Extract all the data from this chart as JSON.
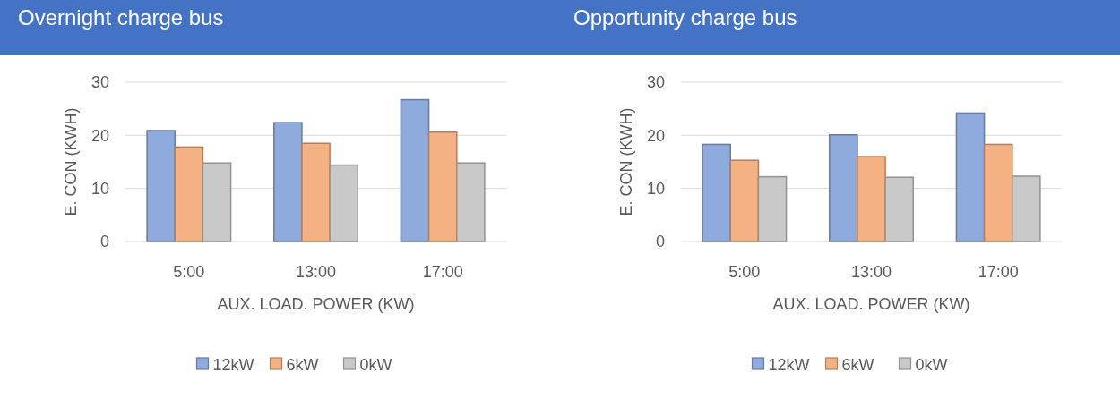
{
  "chart_data": [
    {
      "type": "bar",
      "title": "Overnight charge bus",
      "xlabel": "AUX. LOAD. POWER (KW)",
      "ylabel": "E. CON (KWH)",
      "categories": [
        "5:00",
        "13:00",
        "17:00"
      ],
      "series": [
        {
          "name": "12kW",
          "color": "#8faadc",
          "values": [
            20.9,
            22.4,
            26.7
          ]
        },
        {
          "name": "6kW",
          "color": "#f4b183",
          "values": [
            17.8,
            18.5,
            20.6
          ]
        },
        {
          "name": "0kW",
          "color": "#c9c9c9",
          "values": [
            14.8,
            14.4,
            14.8
          ]
        }
      ],
      "ylim": [
        0,
        30
      ],
      "yticks": [
        0,
        10,
        20,
        30
      ],
      "grid": "y",
      "legend": "bottom"
    },
    {
      "type": "bar",
      "title": "Opportunity charge bus",
      "xlabel": "AUX. LOAD. POWER (KW)",
      "ylabel": "E. CON (KWH)",
      "categories": [
        "5:00",
        "13:00",
        "17:00"
      ],
      "series": [
        {
          "name": "12kW",
          "color": "#8faadc",
          "values": [
            18.3,
            20.1,
            24.2
          ]
        },
        {
          "name": "6kW",
          "color": "#f4b183",
          "values": [
            15.3,
            16.0,
            18.3
          ]
        },
        {
          "name": "0kW",
          "color": "#c9c9c9",
          "values": [
            12.2,
            12.1,
            12.3
          ]
        }
      ],
      "ylim": [
        0,
        30
      ],
      "yticks": [
        0,
        10,
        20,
        30
      ],
      "grid": "y",
      "legend": "bottom"
    }
  ]
}
